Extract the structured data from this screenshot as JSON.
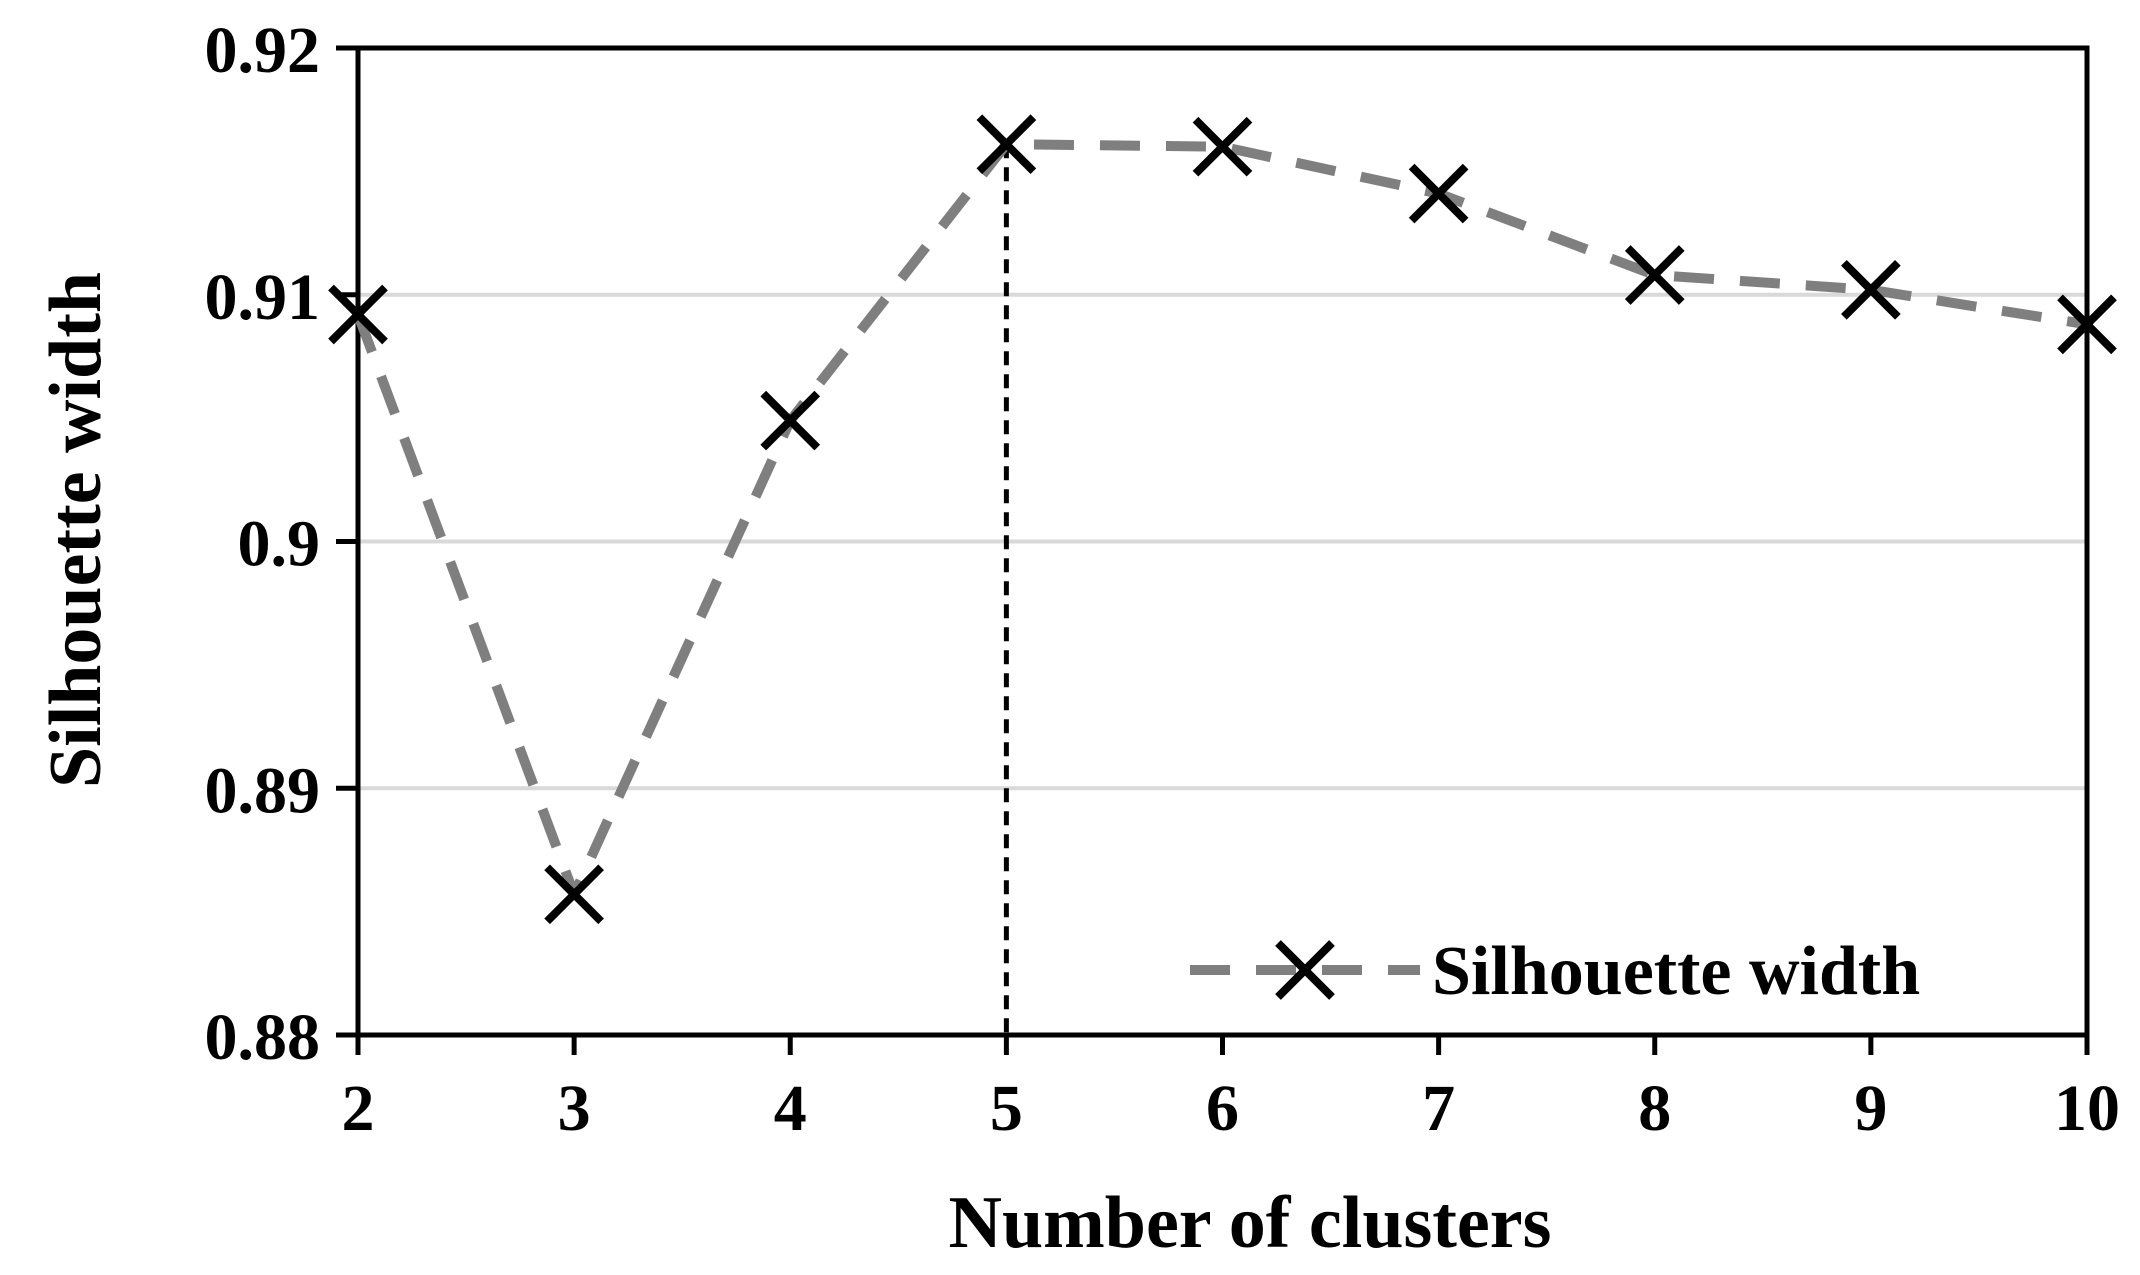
{
  "chart_data": {
    "type": "line",
    "title": "",
    "xlabel": "Number of clusters",
    "ylabel": "Silhouette width",
    "x": [
      2,
      3,
      4,
      5,
      6,
      7,
      8,
      9,
      10
    ],
    "x_tick_labels": [
      "2",
      "3",
      "4",
      "5",
      "6",
      "7",
      "8",
      "9",
      "10"
    ],
    "xlim": [
      2,
      10
    ],
    "ylim": [
      0.88,
      0.92
    ],
    "y_ticks": [
      0.88,
      0.89,
      0.9,
      0.91,
      0.92
    ],
    "y_tick_labels": [
      "0.88",
      "0.89",
      "0.9",
      "0.91",
      "0.92"
    ],
    "grid": true,
    "series": [
      {
        "name": "Silhouette width",
        "values": [
          0.9092,
          0.8857,
          0.9049,
          0.9161,
          0.916,
          0.9141,
          0.9108,
          0.9102,
          0.9088
        ],
        "line_style": "dashed",
        "line_color": "#7f7f7f",
        "marker": "x",
        "marker_color": "#000000"
      }
    ],
    "reference_line": {
      "x": 5,
      "style": "dashed",
      "color": "#000000"
    },
    "legend": {
      "position": "bottom-right",
      "entries": [
        "Silhouette width"
      ]
    },
    "colors": {
      "gridline": "#d9d9d9",
      "axis": "#000000"
    }
  }
}
